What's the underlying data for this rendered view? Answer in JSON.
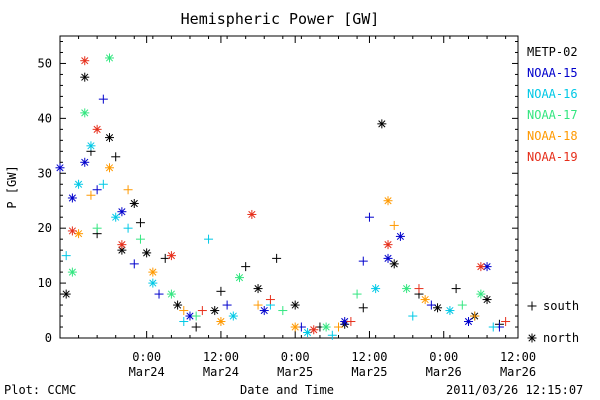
{
  "chart_data": {
    "type": "scatter",
    "title": "Hemispheric Power [GW]",
    "ylabel": "P [GW]",
    "xlabel": "Date and Time",
    "ylim": [
      0,
      55
    ],
    "xlim": [
      "2011-03-23T10:00",
      "2011-03-26T12:00"
    ],
    "x_ticks": [
      {
        "x": "2011-03-24T00:00",
        "line1": "0:00",
        "line2": "Mar24"
      },
      {
        "x": "2011-03-24T12:00",
        "line1": "12:00",
        "line2": "Mar24"
      },
      {
        "x": "2011-03-25T00:00",
        "line1": "0:00",
        "line2": "Mar25"
      },
      {
        "x": "2011-03-25T12:00",
        "line1": "12:00",
        "line2": "Mar25"
      },
      {
        "x": "2011-03-26T00:00",
        "line1": "0:00",
        "line2": "Mar26"
      },
      {
        "x": "2011-03-26T12:00",
        "line1": "12:00",
        "line2": "Mar26"
      }
    ],
    "y_ticks": [
      0,
      10,
      20,
      30,
      40,
      50
    ],
    "grid": false,
    "legend_position": "right",
    "markers": [
      {
        "label": "south",
        "symbol": "+"
      },
      {
        "label": "north",
        "symbol": "*"
      }
    ],
    "series": [
      {
        "name": "METP-02",
        "color": "#000000",
        "points": [
          {
            "x": "2011-03-23T11:00",
            "y": 8,
            "hemisphere": "north"
          },
          {
            "x": "2011-03-23T14:00",
            "y": 47.5,
            "hemisphere": "north"
          },
          {
            "x": "2011-03-23T15:00",
            "y": 34,
            "hemisphere": "south"
          },
          {
            "x": "2011-03-23T16:00",
            "y": 19,
            "hemisphere": "south"
          },
          {
            "x": "2011-03-23T18:00",
            "y": 36.5,
            "hemisphere": "north"
          },
          {
            "x": "2011-03-23T19:00",
            "y": 33,
            "hemisphere": "south"
          },
          {
            "x": "2011-03-23T20:00",
            "y": 16,
            "hemisphere": "north"
          },
          {
            "x": "2011-03-23T22:00",
            "y": 24.5,
            "hemisphere": "north"
          },
          {
            "x": "2011-03-23T23:00",
            "y": 21,
            "hemisphere": "south"
          },
          {
            "x": "2011-03-24T00:00",
            "y": 15.5,
            "hemisphere": "north"
          },
          {
            "x": "2011-03-24T03:00",
            "y": 14.5,
            "hemisphere": "south"
          },
          {
            "x": "2011-03-24T05:00",
            "y": 6,
            "hemisphere": "north"
          },
          {
            "x": "2011-03-24T08:00",
            "y": 2,
            "hemisphere": "south"
          },
          {
            "x": "2011-03-24T11:00",
            "y": 5,
            "hemisphere": "north"
          },
          {
            "x": "2011-03-24T12:00",
            "y": 8.5,
            "hemisphere": "south"
          },
          {
            "x": "2011-03-24T16:00",
            "y": 13,
            "hemisphere": "south"
          },
          {
            "x": "2011-03-24T18:00",
            "y": 9,
            "hemisphere": "north"
          },
          {
            "x": "2011-03-24T21:00",
            "y": 14.5,
            "hemisphere": "south"
          },
          {
            "x": "2011-03-25T00:00",
            "y": 6,
            "hemisphere": "north"
          },
          {
            "x": "2011-03-25T04:00",
            "y": 2,
            "hemisphere": "south"
          },
          {
            "x": "2011-03-25T08:00",
            "y": 2.5,
            "hemisphere": "north"
          },
          {
            "x": "2011-03-25T11:00",
            "y": 5.5,
            "hemisphere": "south"
          },
          {
            "x": "2011-03-25T14:00",
            "y": 39,
            "hemisphere": "north"
          },
          {
            "x": "2011-03-25T16:00",
            "y": 13.5,
            "hemisphere": "north"
          },
          {
            "x": "2011-03-25T20:00",
            "y": 8,
            "hemisphere": "south"
          },
          {
            "x": "2011-03-25T23:00",
            "y": 5.5,
            "hemisphere": "north"
          },
          {
            "x": "2011-03-26T02:00",
            "y": 9,
            "hemisphere": "south"
          },
          {
            "x": "2011-03-26T05:00",
            "y": 4,
            "hemisphere": "north"
          },
          {
            "x": "2011-03-26T07:00",
            "y": 7,
            "hemisphere": "north"
          },
          {
            "x": "2011-03-26T09:00",
            "y": 2.5,
            "hemisphere": "south"
          }
        ]
      },
      {
        "name": "NOAA-15",
        "color": "#0000cc",
        "points": [
          {
            "x": "2011-03-23T10:00",
            "y": 31,
            "hemisphere": "north"
          },
          {
            "x": "2011-03-23T12:00",
            "y": 25.5,
            "hemisphere": "north"
          },
          {
            "x": "2011-03-23T14:00",
            "y": 32,
            "hemisphere": "north"
          },
          {
            "x": "2011-03-23T16:00",
            "y": 27,
            "hemisphere": "south"
          },
          {
            "x": "2011-03-23T17:00",
            "y": 43.5,
            "hemisphere": "south"
          },
          {
            "x": "2011-03-23T20:00",
            "y": 23,
            "hemisphere": "north"
          },
          {
            "x": "2011-03-23T22:00",
            "y": 13.5,
            "hemisphere": "south"
          },
          {
            "x": "2011-03-24T02:00",
            "y": 8,
            "hemisphere": "south"
          },
          {
            "x": "2011-03-24T07:00",
            "y": 4,
            "hemisphere": "north"
          },
          {
            "x": "2011-03-24T13:00",
            "y": 6,
            "hemisphere": "south"
          },
          {
            "x": "2011-03-24T19:00",
            "y": 5,
            "hemisphere": "north"
          },
          {
            "x": "2011-03-25T01:00",
            "y": 2,
            "hemisphere": "south"
          },
          {
            "x": "2011-03-25T08:00",
            "y": 3,
            "hemisphere": "north"
          },
          {
            "x": "2011-03-25T11:00",
            "y": 14,
            "hemisphere": "south"
          },
          {
            "x": "2011-03-25T12:00",
            "y": 22,
            "hemisphere": "south"
          },
          {
            "x": "2011-03-25T15:00",
            "y": 14.5,
            "hemisphere": "north"
          },
          {
            "x": "2011-03-25T17:00",
            "y": 18.5,
            "hemisphere": "north"
          },
          {
            "x": "2011-03-25T22:00",
            "y": 6,
            "hemisphere": "south"
          },
          {
            "x": "2011-03-26T04:00",
            "y": 3,
            "hemisphere": "north"
          },
          {
            "x": "2011-03-26T07:00",
            "y": 13,
            "hemisphere": "north"
          },
          {
            "x": "2011-03-26T09:00",
            "y": 2,
            "hemisphere": "south"
          }
        ]
      },
      {
        "name": "NOAA-16",
        "color": "#00c8e6",
        "points": [
          {
            "x": "2011-03-23T11:00",
            "y": 15,
            "hemisphere": "south"
          },
          {
            "x": "2011-03-23T13:00",
            "y": 28,
            "hemisphere": "north"
          },
          {
            "x": "2011-03-23T15:00",
            "y": 35,
            "hemisphere": "north"
          },
          {
            "x": "2011-03-23T17:00",
            "y": 28,
            "hemisphere": "south"
          },
          {
            "x": "2011-03-23T19:00",
            "y": 22,
            "hemisphere": "north"
          },
          {
            "x": "2011-03-23T21:00",
            "y": 20,
            "hemisphere": "south"
          },
          {
            "x": "2011-03-24T01:00",
            "y": 10,
            "hemisphere": "north"
          },
          {
            "x": "2011-03-24T06:00",
            "y": 3,
            "hemisphere": "south"
          },
          {
            "x": "2011-03-24T10:00",
            "y": 18,
            "hemisphere": "south"
          },
          {
            "x": "2011-03-24T14:00",
            "y": 4,
            "hemisphere": "north"
          },
          {
            "x": "2011-03-24T20:00",
            "y": 6,
            "hemisphere": "south"
          },
          {
            "x": "2011-03-25T02:00",
            "y": 1,
            "hemisphere": "north"
          },
          {
            "x": "2011-03-25T06:00",
            "y": 0.5,
            "hemisphere": "south"
          },
          {
            "x": "2011-03-25T13:00",
            "y": 9,
            "hemisphere": "north"
          },
          {
            "x": "2011-03-25T19:00",
            "y": 4,
            "hemisphere": "south"
          },
          {
            "x": "2011-03-26T01:00",
            "y": 5,
            "hemisphere": "north"
          },
          {
            "x": "2011-03-26T08:00",
            "y": 2,
            "hemisphere": "south"
          }
        ]
      },
      {
        "name": "NOAA-17",
        "color": "#33e680",
        "points": [
          {
            "x": "2011-03-23T12:00",
            "y": 12,
            "hemisphere": "north"
          },
          {
            "x": "2011-03-23T14:00",
            "y": 41,
            "hemisphere": "north"
          },
          {
            "x": "2011-03-23T18:00",
            "y": 51,
            "hemisphere": "north"
          },
          {
            "x": "2011-03-23T16:00",
            "y": 20,
            "hemisphere": "south"
          },
          {
            "x": "2011-03-23T23:00",
            "y": 18,
            "hemisphere": "south"
          },
          {
            "x": "2011-03-24T04:00",
            "y": 8,
            "hemisphere": "north"
          },
          {
            "x": "2011-03-24T08:00",
            "y": 4,
            "hemisphere": "south"
          },
          {
            "x": "2011-03-24T15:00",
            "y": 11,
            "hemisphere": "north"
          },
          {
            "x": "2011-03-24T22:00",
            "y": 5,
            "hemisphere": "south"
          },
          {
            "x": "2011-03-25T05:00",
            "y": 2,
            "hemisphere": "north"
          },
          {
            "x": "2011-03-25T10:00",
            "y": 8,
            "hemisphere": "south"
          },
          {
            "x": "2011-03-25T18:00",
            "y": 9,
            "hemisphere": "north"
          },
          {
            "x": "2011-03-26T03:00",
            "y": 6,
            "hemisphere": "south"
          },
          {
            "x": "2011-03-26T06:00",
            "y": 8,
            "hemisphere": "north"
          }
        ]
      },
      {
        "name": "NOAA-18",
        "color": "#ff9900",
        "points": [
          {
            "x": "2011-03-23T13:00",
            "y": 19,
            "hemisphere": "north"
          },
          {
            "x": "2011-03-23T15:00",
            "y": 26,
            "hemisphere": "south"
          },
          {
            "x": "2011-03-23T18:00",
            "y": 31,
            "hemisphere": "north"
          },
          {
            "x": "2011-03-23T21:00",
            "y": 27,
            "hemisphere": "south"
          },
          {
            "x": "2011-03-24T01:00",
            "y": 12,
            "hemisphere": "north"
          },
          {
            "x": "2011-03-24T06:00",
            "y": 5,
            "hemisphere": "south"
          },
          {
            "x": "2011-03-24T12:00",
            "y": 3,
            "hemisphere": "north"
          },
          {
            "x": "2011-03-24T18:00",
            "y": 6,
            "hemisphere": "south"
          },
          {
            "x": "2011-03-25T00:00",
            "y": 2,
            "hemisphere": "north"
          },
          {
            "x": "2011-03-25T07:00",
            "y": 2,
            "hemisphere": "south"
          },
          {
            "x": "2011-03-25T15:00",
            "y": 25,
            "hemisphere": "north"
          },
          {
            "x": "2011-03-25T16:00",
            "y": 20.5,
            "hemisphere": "south"
          },
          {
            "x": "2011-03-25T21:00",
            "y": 7,
            "hemisphere": "north"
          },
          {
            "x": "2011-03-26T05:00",
            "y": 4,
            "hemisphere": "south"
          }
        ]
      },
      {
        "name": "NOAA-19",
        "color": "#e62e1a",
        "points": [
          {
            "x": "2011-03-23T12:00",
            "y": 19.5,
            "hemisphere": "north"
          },
          {
            "x": "2011-03-23T14:00",
            "y": 50.5,
            "hemisphere": "north"
          },
          {
            "x": "2011-03-23T16:00",
            "y": 38,
            "hemisphere": "north"
          },
          {
            "x": "2011-03-23T20:00",
            "y": 17,
            "hemisphere": "north"
          },
          {
            "x": "2011-03-24T04:00",
            "y": 15,
            "hemisphere": "north"
          },
          {
            "x": "2011-03-24T09:00",
            "y": 5,
            "hemisphere": "south"
          },
          {
            "x": "2011-03-24T17:00",
            "y": 22.5,
            "hemisphere": "north"
          },
          {
            "x": "2011-03-24T20:00",
            "y": 7,
            "hemisphere": "south"
          },
          {
            "x": "2011-03-25T03:00",
            "y": 1.5,
            "hemisphere": "north"
          },
          {
            "x": "2011-03-25T09:00",
            "y": 3,
            "hemisphere": "south"
          },
          {
            "x": "2011-03-25T15:00",
            "y": 17,
            "hemisphere": "north"
          },
          {
            "x": "2011-03-25T20:00",
            "y": 9,
            "hemisphere": "south"
          },
          {
            "x": "2011-03-26T06:00",
            "y": 13,
            "hemisphere": "north"
          },
          {
            "x": "2011-03-26T10:00",
            "y": 3,
            "hemisphere": "south"
          }
        ]
      }
    ]
  },
  "footer": {
    "plot_credit": "Plot: CCMC",
    "timestamp": "2011/03/26 12:15:07"
  }
}
